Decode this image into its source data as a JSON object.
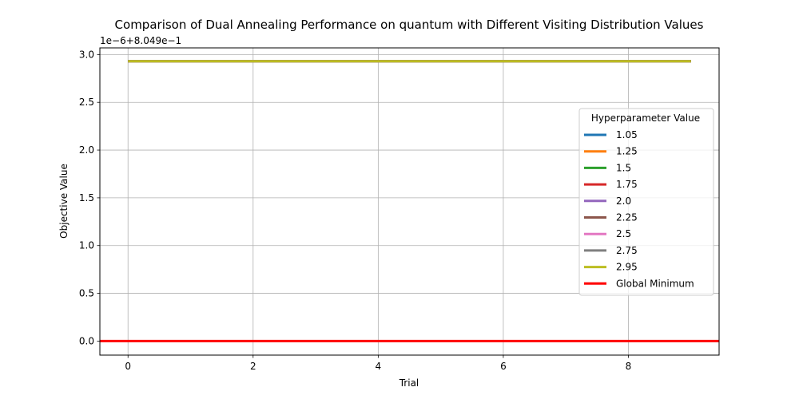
{
  "chart_data": {
    "type": "line",
    "title": "Comparison of Dual Annealing Performance on quantum with Different Visiting Distribution Values",
    "xlabel": "Trial",
    "ylabel": "Objective Value",
    "y_offset_text": "1e−6+8.049e−1",
    "x_ticks": [
      0,
      2,
      4,
      6,
      8
    ],
    "x_tick_labels": [
      "0",
      "2",
      "4",
      "6",
      "8"
    ],
    "y_ticks": [
      0.0,
      0.5,
      1.0,
      1.5,
      2.0,
      2.5,
      3.0
    ],
    "y_tick_labels": [
      "0.0",
      "0.5",
      "1.0",
      "1.5",
      "2.0",
      "2.5",
      "3.0"
    ],
    "xlim": [
      -0.45,
      9.45
    ],
    "ylim": [
      -0.147,
      3.07
    ],
    "grid": true,
    "legend": {
      "title": "Hyperparameter Value",
      "placement": "center-right"
    },
    "x": [
      0,
      1,
      2,
      3,
      4,
      5,
      6,
      7,
      8,
      9
    ],
    "series": [
      {
        "name": "1.05",
        "color": "#1f77b4",
        "values": [
          2.93,
          2.93,
          2.93,
          2.93,
          2.93,
          2.93,
          2.93,
          2.93,
          2.93,
          2.93
        ]
      },
      {
        "name": "1.25",
        "color": "#ff7f0e",
        "values": [
          2.93,
          2.93,
          2.93,
          2.93,
          2.93,
          2.93,
          2.93,
          2.93,
          2.93,
          2.93
        ]
      },
      {
        "name": "1.5",
        "color": "#2ca02c",
        "values": [
          2.93,
          2.93,
          2.93,
          2.93,
          2.93,
          2.93,
          2.93,
          2.93,
          2.93,
          2.93
        ]
      },
      {
        "name": "1.75",
        "color": "#d62728",
        "values": [
          2.93,
          2.93,
          2.93,
          2.93,
          2.93,
          2.93,
          2.93,
          2.93,
          2.93,
          2.93
        ]
      },
      {
        "name": "2.0",
        "color": "#9467bd",
        "values": [
          2.93,
          2.93,
          2.93,
          2.93,
          2.93,
          2.93,
          2.93,
          2.93,
          2.93,
          2.93
        ]
      },
      {
        "name": "2.25",
        "color": "#8c564b",
        "values": [
          2.93,
          2.93,
          2.93,
          2.93,
          2.93,
          2.93,
          2.93,
          2.93,
          2.93,
          2.93
        ]
      },
      {
        "name": "2.5",
        "color": "#e377c2",
        "values": [
          2.93,
          2.93,
          2.93,
          2.93,
          2.93,
          2.93,
          2.93,
          2.93,
          2.93,
          2.93
        ]
      },
      {
        "name": "2.75",
        "color": "#7f7f7f",
        "values": [
          2.93,
          2.93,
          2.93,
          2.93,
          2.93,
          2.93,
          2.93,
          2.93,
          2.93,
          2.93
        ]
      },
      {
        "name": "2.95",
        "color": "#bcbd22",
        "values": [
          2.93,
          2.93,
          2.93,
          2.93,
          2.93,
          2.93,
          2.93,
          2.93,
          2.93,
          2.93
        ]
      }
    ],
    "global_minimum": {
      "name": "Global Minimum",
      "color": "#ff0000",
      "value": 0.0
    }
  }
}
